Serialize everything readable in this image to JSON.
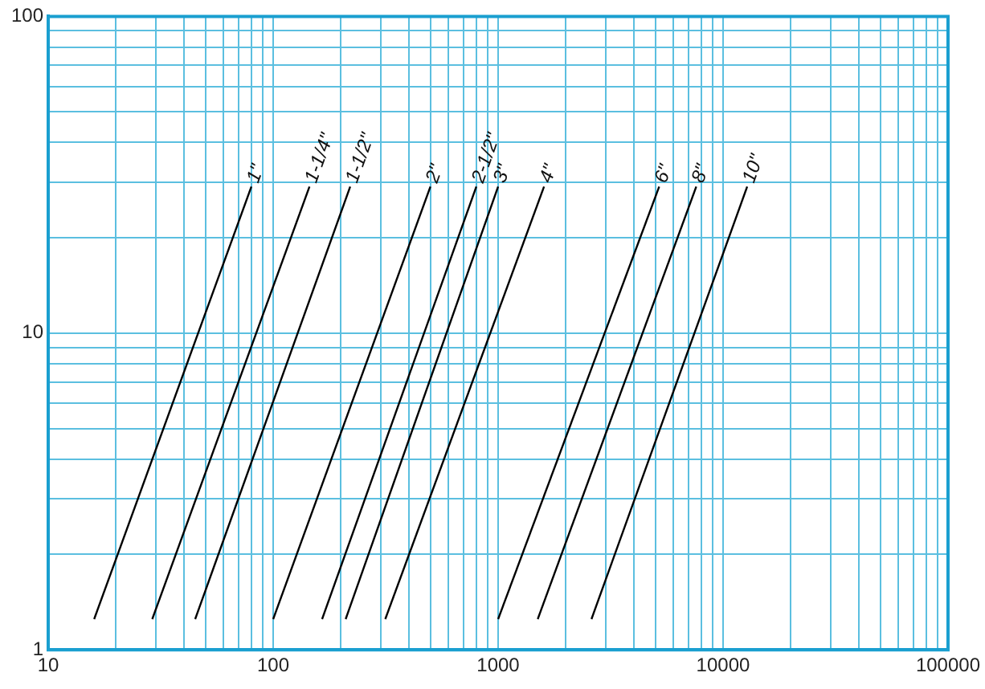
{
  "chart_data": {
    "type": "line",
    "log": "xy",
    "grid": true,
    "legend": false,
    "marker": "none",
    "line_style": "solid",
    "xlim": [
      10,
      100000
    ],
    "ylim": [
      1,
      100
    ],
    "xticks": [
      10,
      {
        "value": 20,
        "label": null
      },
      {
        "value": 30,
        "label": null
      },
      {
        "value": 40,
        "label": null
      },
      {
        "value": 50,
        "label": null
      },
      {
        "value": 60,
        "label": null
      },
      {
        "value": 70,
        "label": null
      },
      {
        "value": 80,
        "label": null
      },
      {
        "value": 90,
        "label": null
      },
      100,
      {
        "value": 200,
        "label": null
      },
      {
        "value": 300,
        "label": null
      },
      {
        "value": 400,
        "label": null
      },
      {
        "value": 500,
        "label": null
      },
      {
        "value": 600,
        "label": null
      },
      {
        "value": 700,
        "label": null
      },
      {
        "value": 800,
        "label": null
      },
      {
        "value": 900,
        "label": null
      },
      1000,
      {
        "value": 2000,
        "label": null
      },
      {
        "value": 3000,
        "label": null
      },
      {
        "value": 4000,
        "label": null
      },
      {
        "value": 5000,
        "label": null
      },
      {
        "value": 6000,
        "label": null
      },
      {
        "value": 7000,
        "label": null
      },
      {
        "value": 8000,
        "label": null
      },
      {
        "value": 9000,
        "label": null
      },
      10000,
      {
        "value": 20000,
        "label": null
      },
      {
        "value": 30000,
        "label": null
      },
      {
        "value": 40000,
        "label": null
      },
      {
        "value": 50000,
        "label": null
      },
      {
        "value": 60000,
        "label": null
      },
      {
        "value": 70000,
        "label": null
      },
      {
        "value": 80000,
        "label": null
      },
      {
        "value": 90000,
        "label": null
      },
      100000
    ],
    "yticks": [
      1,
      {
        "value": 2,
        "label": null
      },
      {
        "value": 3,
        "label": null
      },
      {
        "value": 4,
        "label": null
      },
      {
        "value": 5,
        "label": null
      },
      {
        "value": 6,
        "label": null
      },
      {
        "value": 7,
        "label": null
      },
      {
        "value": 8,
        "label": null
      },
      {
        "value": 9,
        "label": null
      },
      10,
      {
        "value": 20,
        "label": null
      },
      {
        "value": 30,
        "label": null
      },
      {
        "value": 40,
        "label": null
      },
      {
        "value": 50,
        "label": null
      },
      {
        "value": 60,
        "label": null
      },
      {
        "value": 70,
        "label": null
      },
      {
        "value": 80,
        "label": null
      },
      {
        "value": 90,
        "label": null
      },
      100
    ],
    "series": [
      {
        "name": "1\"",
        "color": "#000000",
        "x": [
          16,
          80
        ],
        "values": [
          1.25,
          29
        ]
      },
      {
        "name": "1-1/4\"",
        "color": "#000000",
        "x": [
          29,
          145
        ],
        "values": [
          1.25,
          29
        ]
      },
      {
        "name": "1-1/2\"",
        "color": "#000000",
        "x": [
          45,
          220
        ],
        "values": [
          1.25,
          29
        ]
      },
      {
        "name": "2\"",
        "color": "#000000",
        "x": [
          100,
          500
        ],
        "values": [
          1.25,
          29
        ]
      },
      {
        "name": "2-1/2\"",
        "color": "#000000",
        "x": [
          165,
          800
        ],
        "values": [
          1.25,
          29
        ]
      },
      {
        "name": "3\"",
        "color": "#000000",
        "x": [
          210,
          1000
        ],
        "values": [
          1.25,
          29
        ]
      },
      {
        "name": "4\"",
        "color": "#000000",
        "x": [
          315,
          1600
        ],
        "values": [
          1.25,
          29
        ]
      },
      {
        "name": "6\"",
        "color": "#000000",
        "x": [
          1000,
          5200
        ],
        "values": [
          1.25,
          29
        ]
      },
      {
        "name": "8\"",
        "color": "#000000",
        "x": [
          1500,
          7600
        ],
        "values": [
          1.25,
          29
        ]
      },
      {
        "name": "10\"",
        "color": "#000000",
        "x": [
          2600,
          12800
        ],
        "values": [
          1.25,
          29
        ]
      }
    ]
  }
}
